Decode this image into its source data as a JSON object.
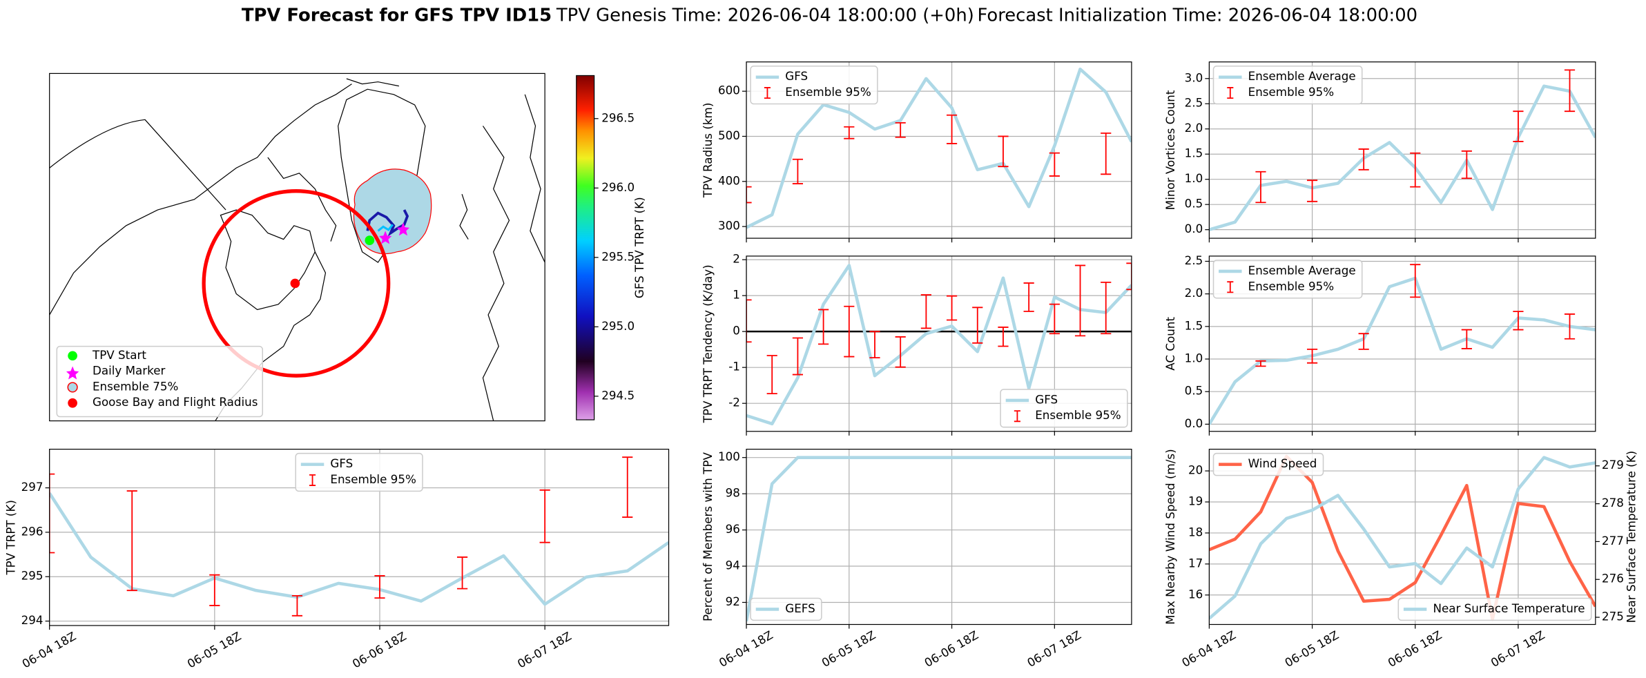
{
  "title": "TPV Forecast for GFS TPV ID15",
  "subtitles": [
    "TPV Genesis Time: 2026-06-04 18:00:00 (+0h)",
    "Forecast Initialization Time: 2026-06-04 18:00:00"
  ],
  "chart_data": [
    {
      "type": "map",
      "legend": [
        "TPV Start",
        "Daily Marker",
        "Ensemble 75%",
        "Goose Bay and Flight Radius"
      ],
      "colorbar": {
        "label": "GFS TPV TRPT (K)",
        "lim": [
          294.33,
          296.81
        ],
        "ticks": [
          294.5,
          {
            "value": 295,
            "label": "295.0"
          },
          295.5,
          {
            "value": 296,
            "label": "296.0"
          },
          296.5
        ]
      }
    },
    {
      "type": "line",
      "ylabel": "TPV TRPT (K)",
      "grid": true,
      "legend": "upper center",
      "categories": [
        "06-04 18Z",
        null,
        null,
        null,
        "06-05 18Z",
        null,
        null,
        null,
        "06-06 18Z",
        null,
        null,
        null,
        "06-07 18Z",
        null,
        null,
        null
      ],
      "xticks": [
        0,
        4,
        8,
        12
      ],
      "ylim": [
        293.9,
        297.87
      ],
      "yticks": [
        294,
        295,
        296,
        297
      ],
      "series": [
        {
          "name": "GFS",
          "type": "line",
          "color": "#add8e6",
          "values": [
            296.88,
            295.44,
            294.73,
            294.57,
            294.97,
            294.69,
            294.54,
            294.85,
            294.71,
            294.45,
            294.97,
            295.47,
            294.38,
            294.99,
            295.13,
            295.77
          ]
        },
        {
          "name": "Ensemble 95%",
          "type": "errorbar",
          "color": "#ff0000",
          "low": [
            295.54,
            null,
            294.69,
            null,
            294.35,
            null,
            294.12,
            null,
            294.52,
            null,
            294.73,
            null,
            295.77,
            null,
            296.34,
            null
          ],
          "high": [
            297.31,
            null,
            296.93,
            null,
            295.04,
            null,
            294.57,
            null,
            295.02,
            null,
            295.44,
            null,
            296.95,
            null,
            297.69,
            null
          ]
        }
      ]
    },
    {
      "type": "line",
      "ylabel": "TPV Radius (km)",
      "grid": true,
      "legend": "upper left",
      "categories": [
        null,
        null,
        null,
        null,
        null,
        null,
        null,
        null,
        null,
        null,
        null,
        null,
        null,
        null,
        null,
        null
      ],
      "xticks": [
        0,
        4,
        8,
        12
      ],
      "ylim": [
        274,
        665
      ],
      "yticks": [
        300,
        400,
        500,
        600
      ],
      "series": [
        {
          "name": "GFS",
          "type": "line",
          "color": "#add8e6",
          "values": [
            298,
            326,
            505,
            570,
            553,
            516,
            535,
            628,
            563,
            426,
            440,
            344,
            479,
            649,
            598,
            488
          ]
        },
        {
          "name": "Ensemble 95%",
          "type": "errorbar",
          "color": "#ff0000",
          "low": [
            353,
            null,
            395,
            null,
            495,
            null,
            498,
            null,
            484,
            null,
            433,
            null,
            412,
            null,
            416,
            null
          ],
          "high": [
            388,
            null,
            449,
            null,
            521,
            null,
            530,
            null,
            547,
            null,
            500,
            null,
            463,
            null,
            507,
            null
          ]
        }
      ]
    },
    {
      "type": "line",
      "ylabel": "TPV TRPT Tendency (K/day)",
      "grid": true,
      "legend": "lower right",
      "categories": [
        null,
        null,
        null,
        null,
        null,
        null,
        null,
        null,
        null,
        null,
        null,
        null,
        null,
        null,
        null,
        null
      ],
      "xticks": [
        0,
        4,
        8,
        12
      ],
      "ylim": [
        -2.78,
        2.1
      ],
      "yticks": [
        -2,
        -1,
        0,
        1,
        2
      ],
      "reference_line": 0,
      "series": [
        {
          "name": "GFS",
          "type": "line",
          "color": "#add8e6",
          "values": [
            -2.34,
            -2.57,
            -1.29,
            0.76,
            1.84,
            -1.23,
            -0.67,
            -0.06,
            0.15,
            -0.56,
            1.49,
            -1.58,
            0.96,
            0.61,
            0.53,
            1.29
          ]
        },
        {
          "name": "Ensemble 95%",
          "type": "errorbar",
          "color": "#ff0000",
          "low": [
            -0.29,
            -1.73,
            -1.2,
            -0.35,
            -0.7,
            -0.73,
            -0.99,
            0.09,
            0.32,
            -0.32,
            -0.41,
            0.56,
            -0.06,
            -0.12,
            -0.06,
            1.17
          ],
          "high": [
            0.88,
            -0.67,
            -0.18,
            0.61,
            0.7,
            0,
            -0.15,
            1.02,
            0.99,
            0.67,
            0.12,
            1.35,
            0.76,
            1.84,
            1.37,
            1.9
          ]
        }
      ]
    },
    {
      "type": "line",
      "ylabel": "Percent of Members with TPV",
      "grid": true,
      "legend": "lower left",
      "categories": [
        "06-04 18Z",
        null,
        null,
        null,
        "06-05 18Z",
        null,
        null,
        null,
        "06-06 18Z",
        null,
        null,
        null,
        "06-07 18Z",
        null,
        null,
        null
      ],
      "xticks": [
        0,
        4,
        8,
        12
      ],
      "ylim": [
        90.78,
        100.46
      ],
      "yticks": [
        92,
        94,
        96,
        98,
        100
      ],
      "series": [
        {
          "name": "GEFS",
          "type": "line",
          "color": "#add8e6",
          "values": [
            90.96,
            98.55,
            100,
            100,
            100,
            100,
            100,
            100,
            100,
            100,
            100,
            100,
            100,
            100,
            100,
            100
          ]
        }
      ]
    },
    {
      "type": "line",
      "ylabel": "Minor Vortices Count",
      "grid": true,
      "legend": "upper left",
      "categories": [
        null,
        null,
        null,
        null,
        null,
        null,
        null,
        null,
        null,
        null,
        null,
        null,
        null,
        null,
        null,
        null
      ],
      "xticks": [
        0,
        4,
        8,
        12
      ],
      "ylim": [
        -0.17,
        3.33
      ],
      "yticks": [
        {
          "value": 0,
          "label": "0.0"
        },
        0.5,
        {
          "value": 1,
          "label": "1.0"
        },
        1.5,
        {
          "value": 2,
          "label": "2.0"
        },
        2.5,
        {
          "value": 3,
          "label": "3.0"
        }
      ],
      "series": [
        {
          "name": "Ensemble Average",
          "type": "line",
          "color": "#add8e6",
          "values": [
            0,
            0.15,
            0.88,
            0.96,
            0.83,
            0.92,
            1.42,
            1.73,
            1.23,
            0.54,
            1.38,
            0.4,
            1.83,
            2.85,
            2.75,
            1.83
          ]
        },
        {
          "name": "Ensemble 95%",
          "type": "errorbar",
          "color": "#ff0000",
          "low": [
            null,
            null,
            0.54,
            null,
            0.56,
            null,
            1.19,
            null,
            0.85,
            null,
            1.02,
            null,
            1.75,
            null,
            2.35,
            null
          ],
          "high": [
            null,
            null,
            1.15,
            null,
            0.98,
            null,
            1.6,
            null,
            1.52,
            null,
            1.56,
            null,
            2.35,
            null,
            3.17,
            null
          ]
        }
      ]
    },
    {
      "type": "line",
      "ylabel": "AC Count",
      "grid": true,
      "legend": "upper left",
      "categories": [
        null,
        null,
        null,
        null,
        null,
        null,
        null,
        null,
        null,
        null,
        null,
        null,
        null,
        null,
        null,
        null
      ],
      "xticks": [
        0,
        4,
        8,
        12
      ],
      "ylim": [
        -0.11,
        2.58
      ],
      "yticks": [
        {
          "value": 0,
          "label": "0.0"
        },
        0.5,
        {
          "value": 1,
          "label": "1.0"
        },
        1.5,
        {
          "value": 2,
          "label": "2.0"
        },
        2.5
      ],
      "series": [
        {
          "name": "Ensemble Average",
          "type": "line",
          "color": "#add8e6",
          "values": [
            0,
            0.65,
            0.97,
            0.98,
            1.05,
            1.15,
            1.31,
            2.11,
            2.24,
            1.15,
            1.31,
            1.18,
            1.63,
            1.6,
            1.5,
            1.45
          ]
        },
        {
          "name": "Ensemble 95%",
          "type": "errorbar",
          "color": "#ff0000",
          "low": [
            null,
            null,
            0.89,
            null,
            0.94,
            null,
            1.15,
            null,
            1.95,
            null,
            1.16,
            null,
            1.45,
            null,
            1.31,
            null
          ],
          "high": [
            null,
            null,
            0.97,
            null,
            1.15,
            null,
            1.39,
            null,
            2.45,
            null,
            1.45,
            null,
            1.73,
            null,
            1.69,
            null
          ]
        }
      ]
    },
    {
      "type": "line",
      "ylabel": "Max Nearby Wind Speed (m/s)",
      "y2label": "Near Surface Temperature (K)",
      "grid": true,
      "ycolor": "#ff6347",
      "y2color": "#4169e1",
      "categories": [
        "06-04 18Z",
        null,
        null,
        null,
        "06-05 18Z",
        null,
        null,
        null,
        "06-06 18Z",
        null,
        null,
        null,
        "06-07 18Z",
        null,
        null,
        null
      ],
      "xticks": [
        0,
        4,
        8,
        12
      ],
      "ylim": [
        15.05,
        20.7
      ],
      "yticks": [
        16,
        17,
        18,
        19,
        20
      ],
      "y2lim": [
        274.81,
        279.44
      ],
      "y2ticks": [
        275,
        276,
        277,
        278,
        279
      ],
      "series": [
        {
          "name": "Wind Speed",
          "type": "line",
          "color": "#ff6347",
          "legend": "upper left",
          "values": [
            17.46,
            17.8,
            18.68,
            20.47,
            19.63,
            17.42,
            15.8,
            15.86,
            16.4,
            17.93,
            19.53,
            15.22,
            18.95,
            18.85,
            17.08,
            15.63
          ]
        },
        {
          "name": "Near Surface Temperature",
          "type": "line",
          "color": "#add8e6",
          "axis": "y2",
          "legend": "lower right",
          "values": [
            274.97,
            275.56,
            276.94,
            277.61,
            277.83,
            278.22,
            277.33,
            276.33,
            276.42,
            275.89,
            276.83,
            276.33,
            278.39,
            279.22,
            278.97,
            279.08
          ]
        }
      ]
    }
  ]
}
